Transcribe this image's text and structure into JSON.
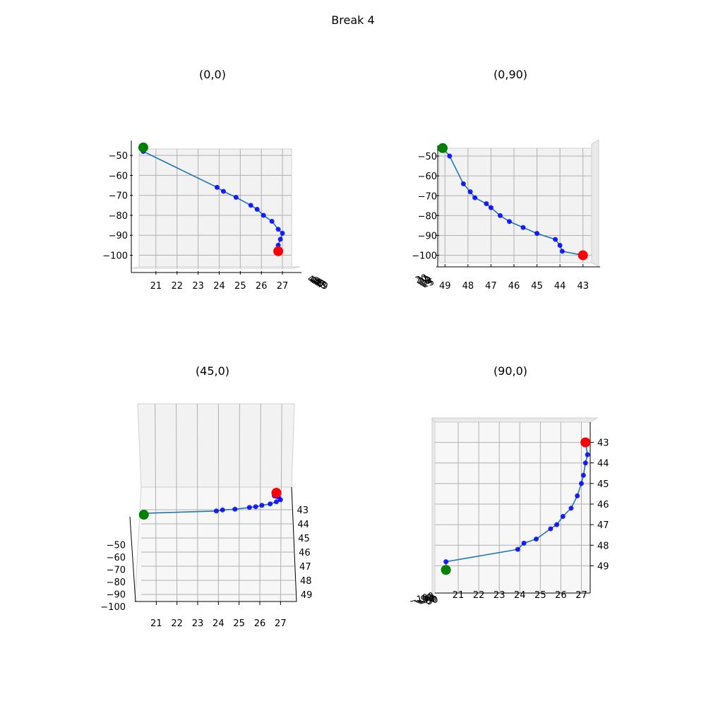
{
  "figure": {
    "title": "Break 4"
  },
  "chart_data": [
    {
      "type": "scatter",
      "title": "(0,0)",
      "x_axis": {
        "ticks": [
          "21",
          "22",
          "23",
          "24",
          "25",
          "26",
          "27"
        ],
        "range": [
          20.0,
          27.5
        ]
      },
      "y_axis": {
        "ticks": [
          "−50",
          "−60",
          "−70",
          "−80",
          "−90",
          "−100"
        ],
        "range": [
          -45,
          -103
        ]
      },
      "depth_axis_ticks": [
        "43",
        "44",
        "45",
        "46",
        "47",
        "48",
        "49"
      ],
      "trajectory": {
        "x": [
          20.4,
          23.9,
          24.2,
          24.8,
          25.5,
          25.8,
          26.1,
          26.5,
          26.8,
          27.0,
          26.9,
          26.8,
          26.7
        ],
        "z": [
          -48,
          -66,
          -68,
          -71,
          -75,
          -77,
          -80,
          -83,
          -87,
          -89,
          -92,
          -95,
          -98
        ]
      },
      "start_point": {
        "x": 20.4,
        "z": -46,
        "color": "#008000"
      },
      "end_point": {
        "x": 26.8,
        "z": -98,
        "color": "#ff0000"
      },
      "markers_color": "#0000ff",
      "line_color": "#1f77b4"
    },
    {
      "type": "scatter",
      "title": "(0,90)",
      "x_axis": {
        "ticks": [
          "49",
          "48",
          "47",
          "46",
          "45",
          "44",
          "43"
        ],
        "range": [
          49.5,
          42.5
        ]
      },
      "y_axis": {
        "ticks": [
          "−50",
          "−60",
          "−70",
          "−80",
          "−90",
          "−100"
        ],
        "range": [
          -45,
          -103
        ]
      },
      "depth_axis_ticks": [
        "20",
        "21",
        "22",
        "23",
        "24",
        "25"
      ],
      "trajectory": {
        "y": [
          48.8,
          48.2,
          47.9,
          47.7,
          47.2,
          47.0,
          46.6,
          46.2,
          45.6,
          45.0,
          44.2,
          44.0,
          43.9
        ],
        "z": [
          -50,
          -64,
          -68,
          -71,
          -74,
          -76,
          -80,
          -83,
          -86,
          -89,
          -92,
          -95,
          -98
        ]
      },
      "start_point": {
        "y": 49.1,
        "z": -46,
        "color": "#008000"
      },
      "end_point": {
        "y": 43.0,
        "z": -100,
        "color": "#ff0000"
      },
      "markers_color": "#0000ff",
      "line_color": "#1f77b4"
    },
    {
      "type": "scatter",
      "title": "(45,0)",
      "x_axis": {
        "ticks": [
          "21",
          "22",
          "23",
          "24",
          "25",
          "26",
          "27"
        ],
        "range": [
          20.0,
          27.5
        ]
      },
      "y_axis": {
        "ticks": [
          "43",
          "44",
          "45",
          "46",
          "47",
          "48",
          "49"
        ],
        "range": [
          42.5,
          49.5
        ]
      },
      "z_axis": {
        "ticks": [
          "−50",
          "−60",
          "−70",
          "−80",
          "−90",
          "−100"
        ],
        "range": [
          -45,
          -103
        ]
      },
      "trajectory": {
        "x": [
          20.4,
          23.9,
          24.2,
          24.8,
          25.5,
          25.8,
          26.1,
          26.5,
          26.8,
          27.0,
          26.9,
          26.8,
          26.7
        ],
        "y": [
          48.8,
          48.2,
          47.9,
          47.7,
          47.2,
          47.0,
          46.6,
          46.2,
          45.6,
          45.0,
          44.2,
          44.0,
          43.9
        ],
        "z": [
          -48,
          -66,
          -68,
          -71,
          -75,
          -77,
          -80,
          -83,
          -87,
          -89,
          -92,
          -95,
          -98
        ]
      },
      "start_point": {
        "x": 20.4,
        "y": 49.2,
        "z": -46,
        "color": "#008000"
      },
      "end_point": {
        "x": 26.8,
        "y": 43.0,
        "z": -98,
        "color": "#ff0000"
      },
      "markers_color": "#0000ff",
      "line_color": "#1f77b4"
    },
    {
      "type": "scatter",
      "title": "(90,0)",
      "x_axis": {
        "ticks": [
          "21",
          "22",
          "23",
          "24",
          "25",
          "26",
          "27"
        ],
        "range": [
          20.0,
          27.5
        ]
      },
      "y_axis": {
        "ticks": [
          "43",
          "44",
          "45",
          "46",
          "47",
          "48",
          "49"
        ],
        "range": [
          42.5,
          49.5
        ]
      },
      "depth_axis_ticks": [
        "−100",
        "−90",
        "−80",
        "−70",
        "−60",
        "−50"
      ],
      "trajectory": {
        "x": [
          20.4,
          23.9,
          24.2,
          24.8,
          25.5,
          25.8,
          26.1,
          26.5,
          26.8,
          27.0,
          27.1,
          27.2,
          27.3
        ],
        "y": [
          48.8,
          48.2,
          47.9,
          47.7,
          47.2,
          47.0,
          46.6,
          46.2,
          45.6,
          45.0,
          44.6,
          44.0,
          43.6
        ]
      },
      "start_point": {
        "x": 20.4,
        "y": 49.2,
        "color": "#008000"
      },
      "end_point": {
        "x": 27.2,
        "y": 43.0,
        "color": "#ff0000"
      },
      "markers_color": "#0000ff",
      "line_color": "#1f77b4"
    }
  ]
}
